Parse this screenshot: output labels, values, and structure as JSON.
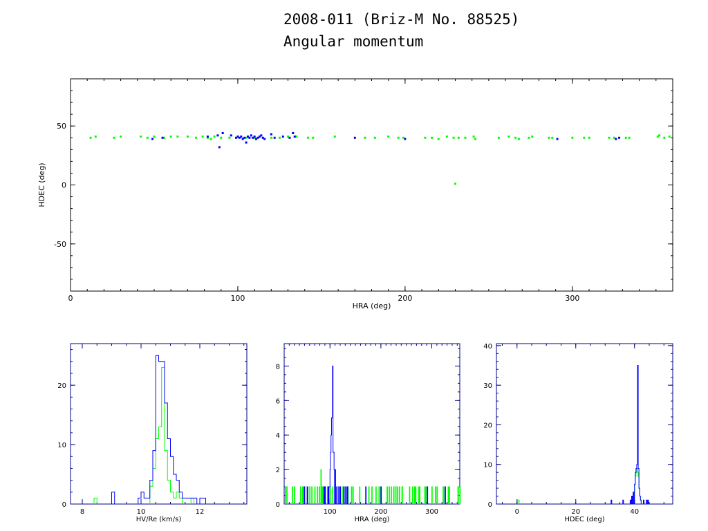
{
  "title": "2008-011 (Briz-M No. 88525)",
  "subtitle": "Angular momentum",
  "colors": {
    "series_a": "#00ff00",
    "series_b": "#0000ff",
    "axis": "#000000"
  },
  "chart_data": [
    {
      "type": "scatter",
      "xlabel": "HRA (deg)",
      "ylabel": "HDEC (deg)",
      "xlim": [
        0,
        360
      ],
      "ylim": [
        -90,
        90
      ],
      "xticks": [
        0,
        100,
        200,
        300
      ],
      "yticks": [
        -50,
        0,
        50
      ],
      "series": [
        {
          "color": "green",
          "points": [
            [
              12,
              40
            ],
            [
              15,
              41
            ],
            [
              26,
              40
            ],
            [
              30,
              41
            ],
            [
              42,
              41
            ],
            [
              46,
              40
            ],
            [
              50,
              41
            ],
            [
              56,
              40
            ],
            [
              60,
              41
            ],
            [
              64,
              41
            ],
            [
              70,
              41
            ],
            [
              75,
              40
            ],
            [
              79,
              41
            ],
            [
              82,
              40
            ],
            [
              84,
              39
            ],
            [
              86,
              41
            ],
            [
              90,
              40
            ],
            [
              95,
              40
            ],
            [
              100,
              41
            ],
            [
              105,
              40
            ],
            [
              110,
              40
            ],
            [
              120,
              40
            ],
            [
              125,
              40
            ],
            [
              130,
              41
            ],
            [
              135,
              41
            ],
            [
              142,
              40
            ],
            [
              145,
              40
            ],
            [
              158,
              41
            ],
            [
              176,
              40
            ],
            [
              182,
              40
            ],
            [
              190,
              41
            ],
            [
              196,
              40
            ],
            [
              199,
              40
            ],
            [
              212,
              40
            ],
            [
              216,
              40
            ],
            [
              220,
              39
            ],
            [
              225,
              41
            ],
            [
              229,
              40
            ],
            [
              232,
              40
            ],
            [
              236,
              40
            ],
            [
              241,
              41
            ],
            [
              242,
              39
            ],
            [
              256,
              40
            ],
            [
              262,
              41
            ],
            [
              266,
              40
            ],
            [
              268,
              39
            ],
            [
              274,
              40
            ],
            [
              276,
              41
            ],
            [
              286,
              40
            ],
            [
              288,
              40
            ],
            [
              300,
              40
            ],
            [
              307,
              40
            ],
            [
              310,
              40
            ],
            [
              322,
              40
            ],
            [
              325,
              40
            ],
            [
              332,
              40
            ],
            [
              334,
              40
            ],
            [
              351,
              41
            ],
            [
              352,
              42
            ],
            [
              355,
              40
            ],
            [
              358,
              41
            ],
            [
              230,
              1
            ]
          ]
        },
        {
          "color": "blue",
          "points": [
            [
              49,
              39
            ],
            [
              55,
              40
            ],
            [
              82,
              41
            ],
            [
              88,
              42
            ],
            [
              89,
              32
            ],
            [
              91,
              44
            ],
            [
              96,
              42
            ],
            [
              99,
              40
            ],
            [
              100,
              41
            ],
            [
              101,
              40
            ],
            [
              102,
              41
            ],
            [
              103,
              39
            ],
            [
              104,
              40
            ],
            [
              105,
              36
            ],
            [
              106,
              41
            ],
            [
              107,
              40
            ],
            [
              108,
              42
            ],
            [
              109,
              40
            ],
            [
              110,
              41
            ],
            [
              111,
              39
            ],
            [
              112,
              40
            ],
            [
              113,
              41
            ],
            [
              114,
              42
            ],
            [
              115,
              40
            ],
            [
              116,
              39
            ],
            [
              120,
              43
            ],
            [
              122,
              40
            ],
            [
              127,
              41
            ],
            [
              131,
              40
            ],
            [
              133,
              44
            ],
            [
              134,
              41
            ],
            [
              170,
              40
            ],
            [
              200,
              39
            ],
            [
              291,
              39
            ],
            [
              326,
              39
            ],
            [
              328,
              40
            ]
          ]
        }
      ]
    },
    {
      "type": "histogram",
      "xlabel": "HV/Re (km/s)",
      "xlim": [
        7.6,
        13.6
      ],
      "ylim": [
        0,
        27
      ],
      "xticks": [
        8,
        10,
        12
      ],
      "yticks": [
        0,
        10,
        20
      ],
      "bin_width": 0.1,
      "series": [
        {
          "color": "green",
          "bins": [
            [
              8.4,
              1
            ],
            [
              10.3,
              3
            ],
            [
              10.4,
              6
            ],
            [
              10.5,
              11
            ],
            [
              10.6,
              13
            ],
            [
              10.7,
              23
            ],
            [
              10.8,
              9
            ],
            [
              10.9,
              4
            ],
            [
              11.0,
              2
            ],
            [
              11.1,
              1
            ],
            [
              11.2,
              2
            ],
            [
              11.3,
              1
            ],
            [
              11.7,
              1
            ]
          ]
        },
        {
          "color": "blue",
          "bins": [
            [
              9.0,
              2
            ],
            [
              9.9,
              1
            ],
            [
              10.0,
              2
            ],
            [
              10.1,
              1
            ],
            [
              10.2,
              1
            ],
            [
              10.3,
              4
            ],
            [
              10.4,
              9
            ],
            [
              10.5,
              25
            ],
            [
              10.6,
              24
            ],
            [
              10.7,
              24
            ],
            [
              10.8,
              17
            ],
            [
              10.9,
              11
            ],
            [
              11.0,
              8
            ],
            [
              11.1,
              5
            ],
            [
              11.2,
              4
            ],
            [
              11.3,
              2
            ],
            [
              11.4,
              1
            ],
            [
              11.5,
              1
            ],
            [
              11.6,
              1
            ],
            [
              11.7,
              1
            ],
            [
              11.8,
              1
            ],
            [
              12.0,
              1
            ],
            [
              12.1,
              1
            ]
          ]
        }
      ]
    },
    {
      "type": "histogram",
      "xlabel": "HRA (deg)",
      "xlim": [
        10,
        355
      ],
      "ylim": [
        0,
        9.3
      ],
      "xticks": [
        100,
        200,
        300
      ],
      "yticks": [
        0,
        2,
        4,
        6,
        8
      ],
      "bin_width": 1,
      "series": [
        {
          "color": "green",
          "bins": [
            [
              12,
              1
            ],
            [
              15,
              1
            ],
            [
              26,
              1
            ],
            [
              30,
              1
            ],
            [
              42,
              1
            ],
            [
              46,
              1
            ],
            [
              50,
              1
            ],
            [
              56,
              1
            ],
            [
              60,
              1
            ],
            [
              64,
              1
            ],
            [
              70,
              1
            ],
            [
              75,
              1
            ],
            [
              79,
              1
            ],
            [
              82,
              2
            ],
            [
              84,
              1
            ],
            [
              86,
              1
            ],
            [
              90,
              1
            ],
            [
              95,
              1
            ],
            [
              100,
              1
            ],
            [
              105,
              1
            ],
            [
              110,
              1
            ],
            [
              120,
              1
            ],
            [
              125,
              1
            ],
            [
              130,
              1
            ],
            [
              135,
              1
            ],
            [
              142,
              1
            ],
            [
              145,
              1
            ],
            [
              158,
              1
            ],
            [
              176,
              1
            ],
            [
              182,
              1
            ],
            [
              190,
              1
            ],
            [
              196,
              1
            ],
            [
              199,
              1
            ],
            [
              212,
              1
            ],
            [
              216,
              1
            ],
            [
              220,
              1
            ],
            [
              225,
              1
            ],
            [
              229,
              1
            ],
            [
              232,
              1
            ],
            [
              236,
              1
            ],
            [
              241,
              1
            ],
            [
              242,
              1
            ],
            [
              256,
              1
            ],
            [
              262,
              1
            ],
            [
              266,
              1
            ],
            [
              268,
              1
            ],
            [
              274,
              1
            ],
            [
              276,
              1
            ],
            [
              286,
              1
            ],
            [
              288,
              1
            ],
            [
              300,
              1
            ],
            [
              307,
              1
            ],
            [
              310,
              1
            ],
            [
              322,
              1
            ],
            [
              325,
              1
            ],
            [
              332,
              1
            ],
            [
              334,
              1
            ],
            [
              351,
              1
            ],
            [
              352,
              1
            ],
            [
              355,
              1
            ]
          ]
        },
        {
          "color": "blue",
          "bins": [
            [
              49,
              1
            ],
            [
              55,
              1
            ],
            [
              88,
              1
            ],
            [
              90,
              1
            ],
            [
              96,
              1
            ],
            [
              98,
              1
            ],
            [
              99,
              1
            ],
            [
              100,
              2
            ],
            [
              101,
              3
            ],
            [
              102,
              4
            ],
            [
              103,
              5
            ],
            [
              104,
              5
            ],
            [
              105,
              8
            ],
            [
              106,
              3
            ],
            [
              107,
              3
            ],
            [
              108,
              2
            ],
            [
              110,
              2
            ],
            [
              113,
              1
            ],
            [
              117,
              1
            ],
            [
              120,
              1
            ],
            [
              127,
              1
            ],
            [
              131,
              1
            ],
            [
              134,
              1
            ],
            [
              170,
              1
            ],
            [
              200,
              1
            ],
            [
              291,
              1
            ],
            [
              326,
              1
            ]
          ]
        }
      ]
    },
    {
      "type": "histogram",
      "xlabel": "HDEC (deg)",
      "xlim": [
        -7,
        53
      ],
      "ylim": [
        0,
        40.5
      ],
      "xticks": [
        0,
        20,
        40
      ],
      "yticks": [
        0,
        10,
        20,
        30,
        40
      ],
      "bin_width": 0.25,
      "series": [
        {
          "color": "green",
          "bins": [
            [
              0.25,
              1
            ],
            [
              0.5,
              1
            ],
            [
              39.0,
              1
            ],
            [
              39.25,
              1
            ],
            [
              39.5,
              2
            ],
            [
              39.75,
              3
            ],
            [
              40.0,
              5
            ],
            [
              40.25,
              7
            ],
            [
              40.5,
              8
            ],
            [
              40.75,
              9
            ],
            [
              41.0,
              8
            ],
            [
              41.25,
              7
            ],
            [
              41.5,
              4
            ],
            [
              41.75,
              2
            ],
            [
              42.0,
              1
            ]
          ]
        },
        {
          "color": "blue",
          "bins": [
            [
              32.0,
              1
            ],
            [
              36.0,
              1
            ],
            [
              38.5,
              1
            ],
            [
              39.0,
              2
            ],
            [
              39.5,
              3
            ],
            [
              40.0,
              5
            ],
            [
              40.25,
              8
            ],
            [
              40.5,
              9
            ],
            [
              40.75,
              10
            ],
            [
              41.0,
              35
            ],
            [
              41.25,
              9
            ],
            [
              41.5,
              4
            ],
            [
              41.75,
              2
            ],
            [
              42.0,
              1
            ],
            [
              43.0,
              1
            ],
            [
              44.0,
              1
            ],
            [
              44.5,
              1
            ]
          ]
        }
      ]
    }
  ]
}
